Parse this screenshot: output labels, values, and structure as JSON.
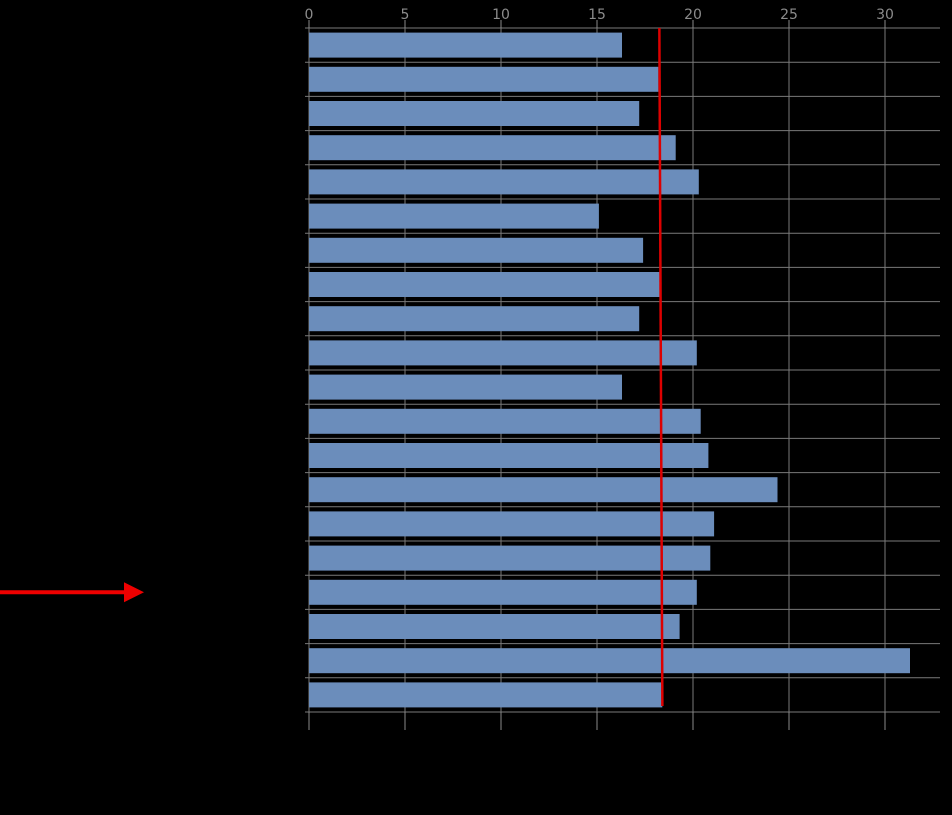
{
  "chart_data": {
    "type": "bar",
    "orientation": "horizontal",
    "xlim": [
      0,
      32
    ],
    "x_ticks": [
      "0",
      "5",
      "10",
      "15",
      "20",
      "25",
      "30"
    ],
    "values": [
      16.3,
      18.2,
      17.2,
      19.1,
      20.3,
      15.1,
      17.4,
      18.3,
      17.2,
      20.2,
      16.3,
      20.4,
      20.8,
      24.4,
      21.1,
      20.9,
      20.2,
      19.3,
      31.3,
      18.4
    ],
    "reference_line": {
      "value": 18.3,
      "color": "#dd0000"
    },
    "bar_color": "#6b8dbb",
    "grid": true,
    "annotation": {
      "kind": "arrow",
      "color": "#ee0000",
      "points_to_bar": 17
    }
  }
}
